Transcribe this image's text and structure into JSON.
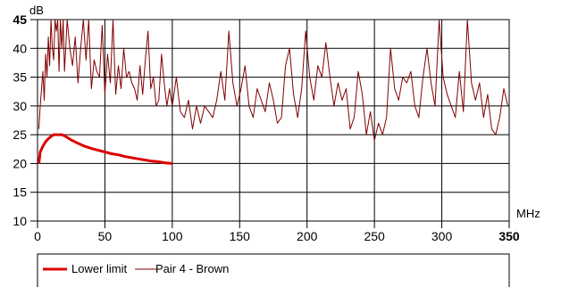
{
  "chart_data": {
    "type": "line",
    "xlabel": "MHz",
    "ylabel": "dB",
    "xlim": [
      0,
      350
    ],
    "ylim": [
      10,
      45
    ],
    "x_ticks": [
      0,
      50,
      100,
      150,
      200,
      250,
      300,
      350
    ],
    "y_ticks": [
      10,
      15,
      20,
      25,
      30,
      35,
      40,
      45
    ],
    "bold_x_ticks": [
      350
    ],
    "bold_y_ticks": [
      45
    ],
    "grid": true,
    "legend_position": "bottom",
    "colors": {
      "lower_limit": "#dd0000",
      "pair4": "#800000"
    },
    "series": [
      {
        "name": "Lower limit",
        "x": [
          1,
          2,
          4,
          6,
          8,
          10,
          12,
          14,
          16,
          18,
          20,
          25,
          30,
          35,
          40,
          45,
          50,
          55,
          60,
          65,
          70,
          75,
          80,
          85,
          90,
          95,
          100
        ],
        "values": [
          20,
          22,
          23,
          23.8,
          24.3,
          24.7,
          25,
          25,
          25,
          25,
          24.8,
          24.1,
          23.5,
          23,
          22.6,
          22.3,
          22,
          21.7,
          21.5,
          21.2,
          21,
          20.8,
          20.6,
          20.4,
          20.3,
          20.1,
          20
        ]
      },
      {
        "name": "Pair 4 - Brown",
        "x": [
          1,
          2,
          3,
          4,
          5,
          6,
          7,
          8,
          9,
          10,
          11,
          12,
          13,
          14,
          15,
          16,
          17,
          18,
          19,
          20,
          22,
          24,
          26,
          28,
          30,
          32,
          34,
          36,
          38,
          40,
          42,
          44,
          46,
          48,
          50,
          52,
          54,
          56,
          58,
          60,
          62,
          64,
          66,
          68,
          70,
          72,
          74,
          76,
          78,
          80,
          82,
          84,
          86,
          88,
          90,
          92,
          94,
          96,
          98,
          100,
          103,
          106,
          109,
          112,
          115,
          118,
          121,
          124,
          127,
          130,
          133,
          136,
          139,
          142,
          145,
          148,
          151,
          154,
          157,
          160,
          163,
          166,
          169,
          172,
          175,
          178,
          181,
          184,
          187,
          190,
          193,
          196,
          199,
          202,
          205,
          208,
          211,
          214,
          217,
          220,
          223,
          226,
          229,
          232,
          235,
          238,
          241,
          244,
          247,
          250,
          253,
          256,
          259,
          262,
          265,
          268,
          271,
          274,
          277,
          280,
          283,
          286,
          289,
          292,
          295,
          298,
          301,
          304,
          307,
          310,
          313,
          316,
          319,
          322,
          325,
          328,
          331,
          334,
          337,
          340,
          343,
          346,
          349
        ],
        "values": [
          26,
          30,
          33,
          36,
          31,
          39,
          35,
          42,
          37,
          45,
          40,
          38,
          45,
          43,
          45,
          36,
          45,
          40,
          45,
          36,
          45,
          40,
          37,
          42,
          34,
          40,
          45,
          38,
          45,
          33,
          38,
          36,
          35,
          44,
          32,
          39,
          34,
          45,
          32,
          37,
          33,
          40,
          35,
          36,
          34,
          33,
          31,
          37,
          32,
          38,
          43,
          33,
          35,
          30,
          31,
          39,
          34,
          30,
          33,
          30,
          35,
          29,
          28,
          31,
          26,
          30,
          27,
          30,
          29,
          28,
          31,
          36,
          31,
          43,
          34,
          30,
          33,
          37,
          30,
          28,
          33,
          31,
          29,
          34,
          31,
          27,
          28,
          37,
          40,
          32,
          28,
          33,
          43,
          35,
          31,
          37,
          35,
          41,
          35,
          30,
          34,
          31,
          33,
          26,
          28,
          36,
          32,
          25,
          29,
          24,
          27,
          25,
          28,
          40,
          33,
          31,
          35,
          34,
          36,
          30,
          28,
          35,
          40,
          34,
          30,
          45,
          35,
          32,
          30,
          28,
          36,
          29,
          45,
          34,
          31,
          34,
          28,
          32,
          26,
          25,
          28,
          33,
          30
        ]
      }
    ]
  }
}
